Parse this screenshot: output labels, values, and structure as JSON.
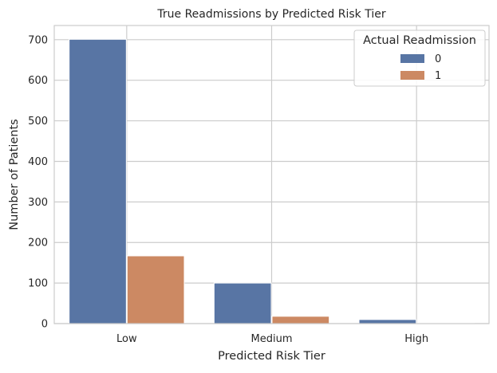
{
  "chart_data": {
    "type": "bar",
    "title": "True Readmissions by Predicted Risk Tier",
    "xlabel": "Predicted Risk Tier",
    "ylabel": "Number of Patients",
    "categories": [
      "Low",
      "Medium",
      "High"
    ],
    "series": [
      {
        "name": "0",
        "values": [
          701,
          100,
          10
        ],
        "color": "#5875a4"
      },
      {
        "name": "1",
        "values": [
          167,
          18,
          1
        ],
        "color": "#cc8963"
      }
    ],
    "ylim": [
      0,
      735
    ],
    "yticks": [
      0,
      100,
      200,
      300,
      400,
      500,
      600,
      700
    ],
    "grid": true,
    "legend": {
      "title": "Actual Readmission",
      "placement": "top-right"
    }
  }
}
